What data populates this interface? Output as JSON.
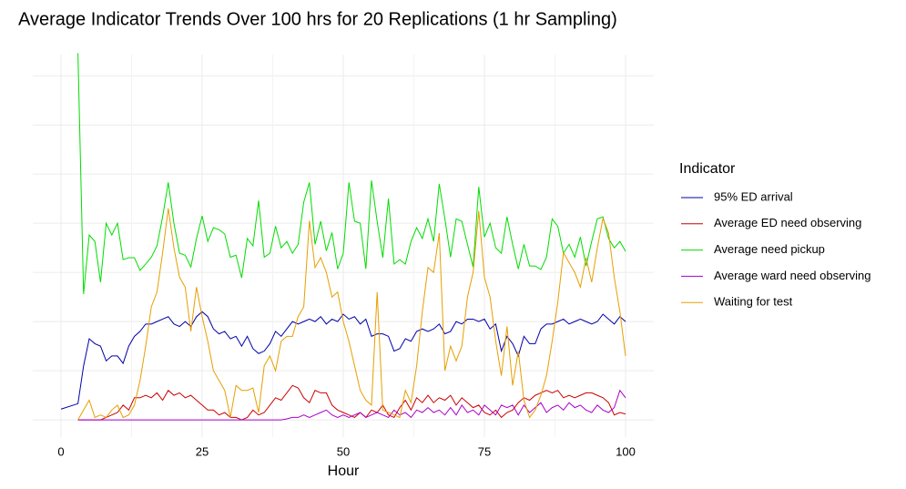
{
  "chart_data": {
    "type": "line",
    "title": "Average Indicator Trends Over 100 hrs for 20 Replications (1 hr Sampling)",
    "x_label": "Hour",
    "legend_title": "Indicator",
    "legend_position": "right",
    "grid": true,
    "xlim": [
      -5,
      105
    ],
    "xticks": [
      0,
      25,
      50,
      75,
      100
    ],
    "xminorticks": [
      12.5,
      37.5,
      62.5,
      87.5
    ],
    "ylim": [
      -0.35,
      7.43
    ],
    "yticks": [
      0,
      1,
      2,
      3,
      4,
      5,
      6,
      7
    ],
    "x": [
      0,
      3,
      4,
      5,
      6,
      7,
      8,
      9,
      10,
      11,
      12,
      13,
      14,
      15,
      16,
      17,
      18,
      19,
      20,
      21,
      22,
      23,
      24,
      25,
      26,
      27,
      28,
      29,
      30,
      31,
      32,
      33,
      34,
      35,
      36,
      37,
      38,
      39,
      40,
      41,
      42,
      43,
      44,
      45,
      46,
      47,
      48,
      49,
      50,
      51,
      52,
      53,
      54,
      55,
      56,
      57,
      58,
      59,
      60,
      61,
      62,
      63,
      64,
      65,
      66,
      67,
      68,
      69,
      70,
      71,
      72,
      73,
      74,
      75,
      76,
      77,
      78,
      79,
      80,
      81,
      82,
      83,
      84,
      85,
      86,
      87,
      88,
      89,
      90,
      91,
      92,
      93,
      94,
      95,
      96,
      97,
      98,
      99,
      100
    ],
    "series": [
      {
        "name": "95% ED arrival",
        "color": "#0000aa",
        "values": [
          0.22,
          0.33,
          1.1,
          1.65,
          1.55,
          1.5,
          1.2,
          1.3,
          1.3,
          1.15,
          1.5,
          1.7,
          1.8,
          1.95,
          1.95,
          2.0,
          2.05,
          2.1,
          1.95,
          1.9,
          2.0,
          1.9,
          2.1,
          2.2,
          2.1,
          1.85,
          1.75,
          1.8,
          1.65,
          1.7,
          1.5,
          1.7,
          1.45,
          1.35,
          1.4,
          1.55,
          1.8,
          1.7,
          1.85,
          2.0,
          1.95,
          2.0,
          2.05,
          2.0,
          2.1,
          1.95,
          2.05,
          2.0,
          2.15,
          2.05,
          2.1,
          1.95,
          2.05,
          1.7,
          1.75,
          1.75,
          1.7,
          1.4,
          1.45,
          1.65,
          1.6,
          1.8,
          1.85,
          1.8,
          1.85,
          1.95,
          1.75,
          1.8,
          2.0,
          1.95,
          2.05,
          2.05,
          2.0,
          2.05,
          1.85,
          1.95,
          1.4,
          1.7,
          1.55,
          1.3,
          1.7,
          1.55,
          1.55,
          1.85,
          1.95,
          1.95,
          2.0,
          2.05,
          1.95,
          2.0,
          2.05,
          2.0,
          1.95,
          2.0,
          2.15,
          2.05,
          1.95,
          2.1,
          2.0
        ]
      },
      {
        "name": "Average ED need observing",
        "color": "#cc0000",
        "values": [
          null,
          0,
          0,
          0,
          0,
          0,
          0.05,
          0.1,
          0.15,
          0.3,
          0.2,
          0.45,
          0.45,
          0.5,
          0.45,
          0.55,
          0.4,
          0.6,
          0.5,
          0.55,
          0.45,
          0.5,
          0.4,
          0.3,
          0.2,
          0.2,
          0.1,
          0.15,
          0.05,
          0.05,
          0.0,
          0.05,
          0.2,
          0.1,
          0.15,
          0.3,
          0.45,
          0.4,
          0.55,
          0.7,
          0.65,
          0.45,
          0.35,
          0.6,
          0.55,
          0.55,
          0.3,
          0.2,
          0.15,
          0.1,
          0.05,
          0.15,
          0.05,
          0.2,
          0.15,
          0.3,
          0.1,
          0.05,
          0.25,
          0.4,
          0.2,
          0.45,
          0.35,
          0.5,
          0.35,
          0.45,
          0.4,
          0.5,
          0.3,
          0.45,
          0.35,
          0.25,
          0.3,
          0.15,
          0.1,
          0.2,
          0.05,
          0.15,
          0.2,
          0.35,
          0.45,
          0.4,
          0.5,
          0.55,
          0.6,
          0.55,
          0.6,
          0.45,
          0.5,
          0.45,
          0.5,
          0.55,
          0.55,
          0.5,
          0.45,
          0.35,
          0.1,
          0.15,
          0.12
        ]
      },
      {
        "name": "Average need pickup",
        "color": "#00dd00",
        "values": [
          null,
          7.46,
          2.56,
          3.76,
          3.63,
          2.8,
          4.0,
          3.76,
          4.0,
          3.26,
          3.3,
          3.3,
          3.04,
          3.17,
          3.31,
          3.54,
          4.13,
          4.83,
          4.0,
          3.39,
          3.35,
          3.11,
          3.69,
          4.15,
          3.63,
          3.91,
          3.87,
          3.78,
          3.31,
          3.35,
          2.89,
          3.69,
          3.54,
          4.46,
          3.31,
          3.39,
          3.94,
          3.5,
          3.63,
          3.39,
          3.57,
          4.43,
          4.83,
          3.57,
          4.04,
          3.44,
          3.81,
          3.07,
          3.39,
          4.83,
          4.04,
          4.0,
          3.07,
          4.87,
          4.04,
          3.3,
          4.5,
          3.17,
          3.26,
          3.17,
          3.63,
          3.91,
          3.69,
          4.09,
          3.63,
          4.8,
          4.09,
          3.31,
          4.09,
          4.04,
          3.57,
          3.11,
          4.74,
          3.72,
          4.0,
          3.5,
          3.39,
          4.13,
          3.57,
          3.07,
          3.57,
          3.13,
          3.13,
          3.06,
          3.31,
          4.09,
          3.94,
          3.39,
          3.57,
          3.31,
          3.72,
          3.13,
          3.63,
          4.09,
          4.13,
          3.69,
          3.5,
          3.63,
          3.43
        ]
      },
      {
        "name": "Average ward need observing",
        "color": "#aa00cc",
        "values": [
          null,
          0,
          0,
          0,
          0,
          0,
          0,
          0,
          0,
          0,
          0,
          0,
          0,
          0,
          0,
          0,
          0,
          0,
          0,
          0,
          0,
          0,
          0,
          0,
          0,
          0,
          0,
          0,
          0,
          0,
          0,
          0,
          0,
          0,
          0,
          0,
          0,
          0,
          0.02,
          0.05,
          0.05,
          0.1,
          0.05,
          0.1,
          0.15,
          0.2,
          0.1,
          0.05,
          0.1,
          0.05,
          0.1,
          0.15,
          0.05,
          0.1,
          0.15,
          0.1,
          0.05,
          0.2,
          0.1,
          0.15,
          0.05,
          0.2,
          0.15,
          0.25,
          0.15,
          0.2,
          0.1,
          0.25,
          0.1,
          0.3,
          0.15,
          0.2,
          0.1,
          0.3,
          0.2,
          0.1,
          0.3,
          0.25,
          0.3,
          0.1,
          0.3,
          0.15,
          0.25,
          0.35,
          0.15,
          0.25,
          0.3,
          0.2,
          0.35,
          0.25,
          0.3,
          0.2,
          0.15,
          0.3,
          0.2,
          0.15,
          0.25,
          0.6,
          0.45
        ]
      },
      {
        "name": "Waiting for test",
        "color": "#e69f00",
        "values": [
          null,
          0,
          0.2,
          0.4,
          0.05,
          0.1,
          0.05,
          0.2,
          0.3,
          0.05,
          0.1,
          0.3,
          0.8,
          1.5,
          2.3,
          2.6,
          3.4,
          4.3,
          3.5,
          2.9,
          2.7,
          1.8,
          2.7,
          2.1,
          1.6,
          1.0,
          0.8,
          0.6,
          0.05,
          0.7,
          0.6,
          0.6,
          0.65,
          0.15,
          1.1,
          1.3,
          1.0,
          1.6,
          1.7,
          1.7,
          2.1,
          2.3,
          4.05,
          3.1,
          3.3,
          3.0,
          2.5,
          2.6,
          2.0,
          1.6,
          1.1,
          0.6,
          0.4,
          0.3,
          2.6,
          0.2,
          0.15,
          0.1,
          0.05,
          0.6,
          0.35,
          1.1,
          2.2,
          3.1,
          3.0,
          3.8,
          1.0,
          1.5,
          1.2,
          1.5,
          2.5,
          3.0,
          4.25,
          2.9,
          2.5,
          1.6,
          0.9,
          1.9,
          0.7,
          1.4,
          0.4,
          0.05,
          0.2,
          0.5,
          0.9,
          1.6,
          2.4,
          3.4,
          3.2,
          3.0,
          2.7,
          3.3,
          2.8,
          3.5,
          4.1,
          3.8,
          2.9,
          2.2,
          1.3
        ]
      }
    ]
  }
}
